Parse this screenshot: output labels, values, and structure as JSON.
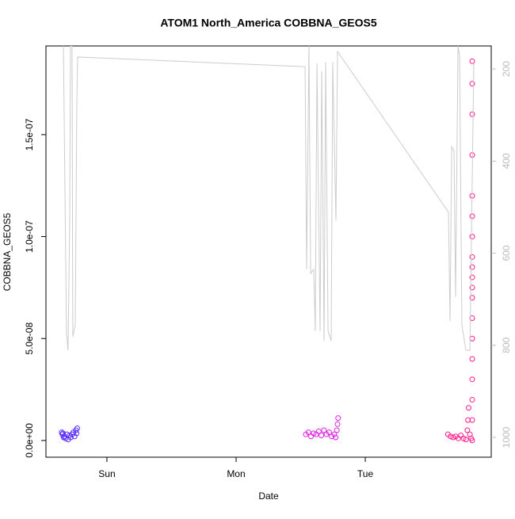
{
  "chart_data": {
    "type": "scatter",
    "title": "ATOM1 North_America COBBNA_GEOS5",
    "x_label": "Date",
    "y_label": "COBBNA_GEOS5",
    "xlim": [
      -0.472,
      2.975
    ],
    "xticks": [
      {
        "value": 0,
        "label": "Sun"
      },
      {
        "value": 1,
        "label": "Mon"
      },
      {
        "value": 2,
        "label": "Tue"
      }
    ],
    "ylim": [
      -8.2e-09,
      1.935e-07
    ],
    "yticks": [
      {
        "value": 0,
        "label": "0.0e+00"
      },
      {
        "value": 5e-08,
        "label": "5.0e-08"
      },
      {
        "value": 1e-07,
        "label": "1.0e-07"
      },
      {
        "value": 1.5e-07,
        "label": "1.5e-07"
      }
    ],
    "y2lim": [
      1043,
      150
    ],
    "y2ticks": [
      200,
      400,
      600,
      800,
      1000
    ],
    "series": [
      {
        "type": "scatter",
        "color": "#5a2dff",
        "x": [
          -0.35,
          -0.345,
          -0.34,
          -0.335,
          -0.33,
          -0.32,
          -0.31,
          -0.3,
          -0.29,
          -0.28,
          -0.27,
          -0.26,
          -0.25,
          -0.24,
          -0.235,
          -0.23
        ],
        "values": [
          4e-09,
          3e-09,
          3.5e-09,
          1.5e-09,
          2e-09,
          1e-09,
          3e-09,
          5e-10,
          2.5e-09,
          1.5e-09,
          3e-09,
          4e-09,
          2e-09,
          5e-09,
          3.5e-09,
          6e-09
        ]
      },
      {
        "type": "scatter",
        "color": "#e020e0",
        "x": [
          1.54,
          1.56,
          1.58,
          1.6,
          1.62,
          1.64,
          1.66,
          1.68,
          1.7,
          1.72,
          1.74,
          1.76,
          1.77,
          1.78,
          1.785,
          1.79
        ],
        "values": [
          3e-09,
          4e-09,
          2e-09,
          3.5e-09,
          3e-09,
          4.5e-09,
          2.5e-09,
          5e-09,
          3e-09,
          4e-09,
          2e-09,
          3e-09,
          1.5e-09,
          5e-09,
          8e-09,
          1.1e-08
        ]
      },
      {
        "type": "scatter",
        "color": "#ff1a8c",
        "x": [
          2.64,
          2.66,
          2.68,
          2.7,
          2.72,
          2.74,
          2.76,
          2.78,
          2.79,
          2.795,
          2.8,
          2.81,
          2.82,
          2.828,
          2.828,
          2.828,
          2.828,
          2.828,
          2.828,
          2.828,
          2.828,
          2.828,
          2.828,
          2.828,
          2.828,
          2.828,
          2.828,
          2.828,
          2.828,
          2.828,
          2.828,
          2.828
        ],
        "values": [
          3e-09,
          2e-09,
          1.5e-09,
          2e-09,
          1e-09,
          2.5e-09,
          1e-09,
          5e-10,
          5e-09,
          1e-08,
          1.6e-08,
          3e-09,
          1e-09,
          0,
          1e-08,
          2e-08,
          3e-08,
          4e-08,
          5e-08,
          6e-08,
          7e-08,
          7.5e-08,
          8e-08,
          8.5e-08,
          9e-08,
          1e-07,
          1.1e-07,
          1.2e-07,
          1.4e-07,
          1.6e-07,
          1.75e-07,
          1.86e-07
        ]
      },
      {
        "type": "line",
        "axis": "y2",
        "color": "#cccccc",
        "x": [
          -0.337,
          -0.313,
          -0.301,
          -0.288,
          -0.282,
          -0.27,
          -0.264,
          -0.245,
          -0.233,
          -0.227,
          1.534,
          1.546,
          1.564,
          1.577,
          1.601,
          1.613,
          1.626,
          1.65,
          1.663,
          1.681,
          1.693,
          1.712,
          1.736,
          1.748,
          1.773,
          1.785,
          2.644,
          2.656,
          2.669,
          2.687,
          2.699,
          2.718,
          2.73,
          2.748,
          2.767,
          2.779,
          2.81,
          2.84
        ],
        "values": [
          150,
          773,
          811,
          523,
          150,
          150,
          781,
          756,
          274,
          174,
          195,
          635,
          150,
          644,
          635,
          769,
          188,
          769,
          205,
          790,
          185,
          769,
          790,
          185,
          529,
          162,
          511,
          747,
          369,
          378,
          695,
          150,
          171,
          756,
          790,
          811,
          811,
          188
        ]
      }
    ]
  }
}
